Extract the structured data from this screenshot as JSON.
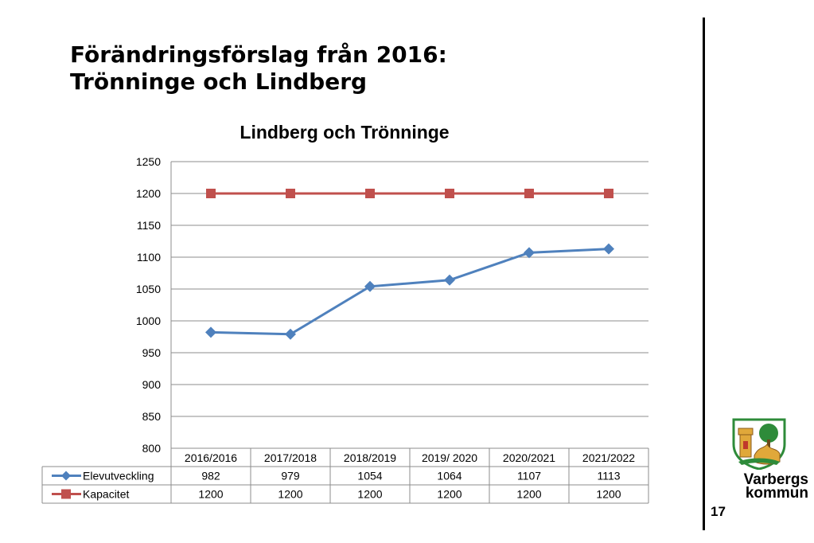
{
  "slide": {
    "title_line1": "Förändringsförslag från 2016:",
    "title_line2": "Trönninge och Lindberg",
    "page_number": "17",
    "logo_text_line1": "Varbergs",
    "logo_text_line2": "kommun"
  },
  "colors": {
    "series1": "#4f81bd",
    "series2": "#c0504d",
    "grid": "#8c8c8c",
    "logo_green": "#2e8b3a",
    "logo_gold": "#e0a83a",
    "logo_red": "#c0392b"
  },
  "chart_data": {
    "type": "line",
    "title": "Lindberg och Trönninge",
    "xlabel": "",
    "ylabel": "",
    "categories": [
      "2016/2016",
      "2017/2018",
      "2018/2019",
      "2019/ 2020",
      "2020/2021",
      "2021/2022"
    ],
    "series": [
      {
        "name": "Elevutveckling",
        "values": [
          982,
          979,
          1054,
          1064,
          1107,
          1113
        ],
        "marker": "diamond"
      },
      {
        "name": "Kapacitet",
        "values": [
          1200,
          1200,
          1200,
          1200,
          1200,
          1200
        ],
        "marker": "square"
      }
    ],
    "ylim": [
      800,
      1250
    ],
    "yticks": [
      800,
      850,
      900,
      950,
      1000,
      1050,
      1100,
      1150,
      1200,
      1250
    ],
    "grid": true,
    "legend": "data-table"
  }
}
